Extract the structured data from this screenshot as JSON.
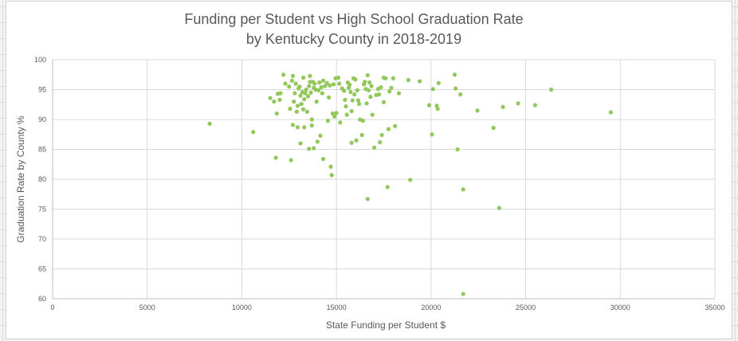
{
  "chart_data": {
    "type": "scatter",
    "title": [
      "Funding per Student vs High School Graduation Rate",
      "by Kentucky County in 2018-2019"
    ],
    "xlabel": "State Funding per Student $",
    "ylabel": "Graduation Rate by County %",
    "xlim": [
      0,
      35000
    ],
    "ylim": [
      60,
      100
    ],
    "xticks": [
      0,
      5000,
      10000,
      15000,
      20000,
      25000,
      30000,
      35000
    ],
    "yticks": [
      60,
      65,
      70,
      75,
      80,
      85,
      90,
      95,
      100
    ],
    "grid": true,
    "legend": "none",
    "marker_color": "#92c85a",
    "series": [
      {
        "points": [
          [
            8300,
            89.3
          ],
          [
            10600,
            87.9
          ],
          [
            11500,
            93.6
          ],
          [
            11700,
            93.0
          ],
          [
            11800,
            83.6
          ],
          [
            11850,
            91.0
          ],
          [
            11900,
            94.3
          ],
          [
            12000,
            93.3
          ],
          [
            12050,
            94.4
          ],
          [
            12200,
            97.5
          ],
          [
            12300,
            96.0
          ],
          [
            12500,
            95.5
          ],
          [
            12550,
            91.8
          ],
          [
            12600,
            83.2
          ],
          [
            12650,
            96.5
          ],
          [
            12700,
            89.1
          ],
          [
            12700,
            97.3
          ],
          [
            12750,
            93.0
          ],
          [
            12800,
            94.4
          ],
          [
            12850,
            96.0
          ],
          [
            12900,
            91.3
          ],
          [
            12950,
            92.3
          ],
          [
            12950,
            88.7
          ],
          [
            13000,
            95.2
          ],
          [
            13050,
            95.5
          ],
          [
            13100,
            94.0
          ],
          [
            13100,
            86.0
          ],
          [
            13150,
            92.6
          ],
          [
            13200,
            94.6
          ],
          [
            13250,
            91.7
          ],
          [
            13250,
            97.0
          ],
          [
            13300,
            88.7
          ],
          [
            13300,
            93.4
          ],
          [
            13350,
            94.4
          ],
          [
            13400,
            95.0
          ],
          [
            13450,
            91.3
          ],
          [
            13500,
            93.9
          ],
          [
            13550,
            95.6
          ],
          [
            13550,
            85.1
          ],
          [
            13600,
            96.3
          ],
          [
            13600,
            97.3
          ],
          [
            13650,
            94.5
          ],
          [
            13700,
            90.0
          ],
          [
            13700,
            89.0
          ],
          [
            13750,
            96.3
          ],
          [
            13800,
            95.3
          ],
          [
            13800,
            85.2
          ],
          [
            13850,
            96.0
          ],
          [
            13900,
            95.0
          ],
          [
            13950,
            93.0
          ],
          [
            14000,
            86.3
          ],
          [
            14050,
            94.9
          ],
          [
            14100,
            96.2
          ],
          [
            14150,
            87.3
          ],
          [
            14200,
            95.4
          ],
          [
            14250,
            94.4
          ],
          [
            14300,
            96.5
          ],
          [
            14300,
            83.4
          ],
          [
            14400,
            95.6
          ],
          [
            14500,
            96.1
          ],
          [
            14550,
            89.8
          ],
          [
            14600,
            93.7
          ],
          [
            14650,
            95.7
          ],
          [
            14700,
            82.1
          ],
          [
            14750,
            80.7
          ],
          [
            14800,
            91.0
          ],
          [
            14850,
            95.9
          ],
          [
            14900,
            90.5
          ],
          [
            14950,
            96.9
          ],
          [
            15000,
            91.1
          ],
          [
            15100,
            97.0
          ],
          [
            15150,
            96.0
          ],
          [
            15200,
            89.5
          ],
          [
            15300,
            95.2
          ],
          [
            15400,
            94.8
          ],
          [
            15450,
            93.3
          ],
          [
            15500,
            92.2
          ],
          [
            15550,
            90.8
          ],
          [
            15600,
            96.2
          ],
          [
            15650,
            95.3
          ],
          [
            15700,
            95.8
          ],
          [
            15750,
            94.6
          ],
          [
            15800,
            91.4
          ],
          [
            15800,
            86.1
          ],
          [
            15850,
            93.2
          ],
          [
            15900,
            96.9
          ],
          [
            15950,
            94.2
          ],
          [
            16000,
            96.7
          ],
          [
            16050,
            86.5
          ],
          [
            16100,
            94.9
          ],
          [
            16150,
            93.2
          ],
          [
            16200,
            92.6
          ],
          [
            16250,
            90.0
          ],
          [
            16350,
            87.4
          ],
          [
            16400,
            89.8
          ],
          [
            16450,
            95.9
          ],
          [
            16500,
            96.3
          ],
          [
            16550,
            95.1
          ],
          [
            16600,
            92.7
          ],
          [
            16650,
            97.4
          ],
          [
            16650,
            76.7
          ],
          [
            16700,
            94.9
          ],
          [
            16750,
            96.2
          ],
          [
            16800,
            93.8
          ],
          [
            16850,
            95.6
          ],
          [
            16900,
            90.8
          ],
          [
            17000,
            85.3
          ],
          [
            17100,
            94.1
          ],
          [
            17200,
            95.1
          ],
          [
            17250,
            94.2
          ],
          [
            17300,
            86.2
          ],
          [
            17350,
            95.4
          ],
          [
            17400,
            87.4
          ],
          [
            17500,
            92.9
          ],
          [
            17500,
            97.0
          ],
          [
            17600,
            96.9
          ],
          [
            17700,
            78.7
          ],
          [
            17750,
            88.4
          ],
          [
            17800,
            94.7
          ],
          [
            17900,
            95.3
          ],
          [
            18000,
            96.9
          ],
          [
            18100,
            88.9
          ],
          [
            18300,
            94.4
          ],
          [
            18800,
            96.6
          ],
          [
            18900,
            79.9
          ],
          [
            19400,
            96.4
          ],
          [
            19900,
            92.4
          ],
          [
            20050,
            87.5
          ],
          [
            20100,
            95.1
          ],
          [
            20300,
            92.3
          ],
          [
            20350,
            91.8
          ],
          [
            20400,
            96.1
          ],
          [
            21250,
            97.5
          ],
          [
            21300,
            95.2
          ],
          [
            21400,
            85.0
          ],
          [
            21550,
            94.2
          ],
          [
            21700,
            60.8
          ],
          [
            21700,
            78.3
          ],
          [
            22450,
            91.5
          ],
          [
            23300,
            88.6
          ],
          [
            23600,
            75.2
          ],
          [
            23800,
            92.1
          ],
          [
            24600,
            92.7
          ],
          [
            25500,
            92.4
          ],
          [
            26350,
            95.0
          ],
          [
            29500,
            91.2
          ]
        ]
      }
    ]
  }
}
